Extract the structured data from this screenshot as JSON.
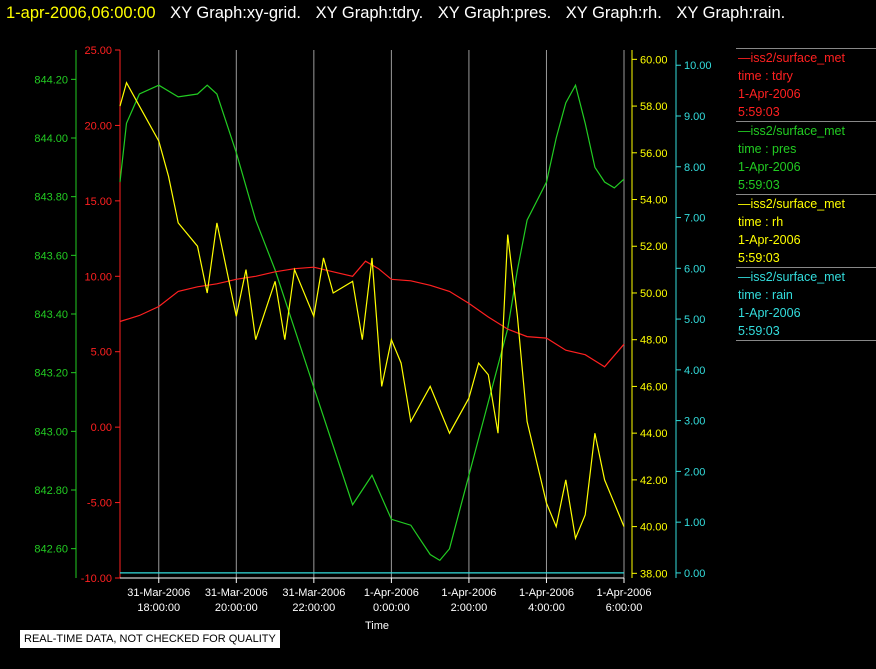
{
  "header": {
    "timestamp": "1-apr-2006,06:00:00",
    "graphs": [
      "XY Graph:xy-grid.",
      "XY Graph:tdry.",
      "XY Graph:pres.",
      "XY Graph:rh.",
      "XY Graph:rain."
    ]
  },
  "legend": [
    {
      "source": "—iss2/surface_met",
      "var": "time : tdry",
      "date": "1-Apr-2006",
      "time": "5:59:03",
      "color": "#ff2020"
    },
    {
      "source": "—iss2/surface_met",
      "var": "time : pres",
      "date": "1-Apr-2006",
      "time": "5:59:03",
      "color": "#22cc22"
    },
    {
      "source": "—iss2/surface_met",
      "var": "time : rh",
      "date": "1-Apr-2006",
      "time": "5:59:03",
      "color": "#ffff00"
    },
    {
      "source": "—iss2/surface_met",
      "var": "time : rain",
      "date": "1-Apr-2006",
      "time": "5:59:03",
      "color": "#33dddd"
    }
  ],
  "note": "REAL-TIME DATA, NOT CHECKED FOR QUALITY",
  "chart_data": {
    "type": "line",
    "xlabel": "Time",
    "x_range": [
      "2006-03-31 17:00",
      "2006-04-01 06:00"
    ],
    "x_ticks": [
      {
        "line1": "31-Mar-2006",
        "line2": "18:00:00",
        "t": "2006-03-31 18:00"
      },
      {
        "line1": "31-Mar-2006",
        "line2": "20:00:00",
        "t": "2006-03-31 20:00"
      },
      {
        "line1": "31-Mar-2006",
        "line2": "22:00:00",
        "t": "2006-03-31 22:00"
      },
      {
        "line1": "1-Apr-2006",
        "line2": "0:00:00",
        "t": "2006-04-01 00:00"
      },
      {
        "line1": "1-Apr-2006",
        "line2": "2:00:00",
        "t": "2006-04-01 02:00"
      },
      {
        "line1": "1-Apr-2006",
        "line2": "4:00:00",
        "t": "2006-04-01 04:00"
      },
      {
        "line1": "1-Apr-2006",
        "line2": "6:00:00",
        "t": "2006-04-01 06:00"
      }
    ],
    "grid": "vertical",
    "axes": {
      "pres": {
        "side": "left-outer",
        "color": "#22cc22",
        "range": [
          842.5,
          844.3
        ],
        "ticks": [
          "844.20",
          "844.00",
          "843.80",
          "843.60",
          "843.40",
          "843.20",
          "843.00",
          "842.80",
          "842.60"
        ]
      },
      "tdry": {
        "side": "left-inner",
        "color": "#ff2020",
        "range": [
          -10,
          25
        ],
        "ticks": [
          "25.00",
          "20.00",
          "15.00",
          "10.00",
          "5.00",
          "0.00",
          "-5.00",
          "-10.00"
        ]
      },
      "rh": {
        "side": "right-inner",
        "color": "#ffff00",
        "range": [
          37.8,
          60.4
        ],
        "ticks": [
          "60.00",
          "58.00",
          "56.00",
          "54.00",
          "52.00",
          "50.00",
          "48.00",
          "46.00",
          "44.00",
          "42.00",
          "40.00",
          "38.00"
        ]
      },
      "rain": {
        "side": "right-outer",
        "color": "#33dddd",
        "range": [
          -0.1,
          10.3
        ],
        "ticks": [
          "10.00",
          "9.00",
          "8.00",
          "7.00",
          "6.00",
          "5.00",
          "4.00",
          "3.00",
          "2.00",
          "1.00",
          "0.00"
        ]
      }
    },
    "series": [
      {
        "name": "pres",
        "axis": "pres",
        "color": "#22cc22",
        "x": [
          "2006-03-31 17:00",
          "2006-03-31 17:10",
          "2006-03-31 17:30",
          "2006-03-31 18:00",
          "2006-03-31 18:30",
          "2006-03-31 19:00",
          "2006-03-31 19:15",
          "2006-03-31 19:30",
          "2006-03-31 20:00",
          "2006-03-31 20:30",
          "2006-03-31 21:00",
          "2006-03-31 21:30",
          "2006-03-31 22:00",
          "2006-03-31 22:30",
          "2006-03-31 23:00",
          "2006-03-31 23:15",
          "2006-03-31 23:30",
          "2006-04-01 00:00",
          "2006-04-01 00:30",
          "2006-04-01 00:45",
          "2006-04-01 01:00",
          "2006-04-01 01:15",
          "2006-04-01 01:30",
          "2006-04-01 02:00",
          "2006-04-01 02:30",
          "2006-04-01 03:00",
          "2006-04-01 03:15",
          "2006-04-01 03:30",
          "2006-04-01 04:00",
          "2006-04-01 04:15",
          "2006-04-01 04:30",
          "2006-04-01 04:45",
          "2006-04-01 05:00",
          "2006-04-01 05:15",
          "2006-04-01 05:30",
          "2006-04-01 05:45",
          "2006-04-01 06:00"
        ],
        "y": [
          843.85,
          844.05,
          844.15,
          844.18,
          844.14,
          844.15,
          844.18,
          844.15,
          843.95,
          843.72,
          843.55,
          843.35,
          843.15,
          842.95,
          842.75,
          842.8,
          842.85,
          842.7,
          842.68,
          842.63,
          842.58,
          842.56,
          842.6,
          842.85,
          843.1,
          843.35,
          843.55,
          843.72,
          843.85,
          844.0,
          844.12,
          844.18,
          844.05,
          843.9,
          843.85,
          843.83,
          843.86
        ]
      },
      {
        "name": "tdry",
        "axis": "tdry",
        "color": "#ff2020",
        "x": [
          "2006-03-31 17:00",
          "2006-03-31 17:30",
          "2006-03-31 18:00",
          "2006-03-31 18:30",
          "2006-03-31 19:00",
          "2006-03-31 19:30",
          "2006-03-31 20:00",
          "2006-03-31 20:30",
          "2006-03-31 21:00",
          "2006-03-31 21:30",
          "2006-03-31 22:00",
          "2006-03-31 22:30",
          "2006-03-31 23:00",
          "2006-03-31 23:20",
          "2006-03-31 23:40",
          "2006-04-01 00:00",
          "2006-04-01 00:30",
          "2006-04-01 01:00",
          "2006-04-01 01:30",
          "2006-04-01 02:00",
          "2006-04-01 02:30",
          "2006-04-01 03:00",
          "2006-04-01 03:30",
          "2006-04-01 04:00",
          "2006-04-01 04:30",
          "2006-04-01 05:00",
          "2006-04-01 05:15",
          "2006-04-01 05:30",
          "2006-04-01 06:00"
        ],
        "y": [
          7.0,
          7.4,
          8.0,
          9.0,
          9.3,
          9.5,
          9.8,
          10.0,
          10.3,
          10.5,
          10.6,
          10.3,
          10.0,
          11.0,
          10.5,
          9.8,
          9.7,
          9.4,
          9.0,
          8.2,
          7.3,
          6.5,
          6.0,
          5.9,
          5.1,
          4.8,
          4.4,
          4.0,
          5.5
        ]
      },
      {
        "name": "rh",
        "axis": "rh",
        "color": "#ffff00",
        "x": [
          "2006-03-31 17:00",
          "2006-03-31 17:10",
          "2006-03-31 17:30",
          "2006-03-31 18:00",
          "2006-03-31 18:15",
          "2006-03-31 18:30",
          "2006-03-31 19:00",
          "2006-03-31 19:15",
          "2006-03-31 19:30",
          "2006-03-31 20:00",
          "2006-03-31 20:15",
          "2006-03-31 20:30",
          "2006-03-31 21:00",
          "2006-03-31 21:15",
          "2006-03-31 21:30",
          "2006-03-31 22:00",
          "2006-03-31 22:15",
          "2006-03-31 22:30",
          "2006-03-31 23:00",
          "2006-03-31 23:15",
          "2006-03-31 23:30",
          "2006-03-31 23:45",
          "2006-04-01 00:00",
          "2006-04-01 00:15",
          "2006-04-01 00:30",
          "2006-04-01 01:00",
          "2006-04-01 01:30",
          "2006-04-01 02:00",
          "2006-04-01 02:15",
          "2006-04-01 02:30",
          "2006-04-01 02:45",
          "2006-04-01 03:00",
          "2006-04-01 03:15",
          "2006-04-01 03:30",
          "2006-04-01 04:00",
          "2006-04-01 04:15",
          "2006-04-01 04:30",
          "2006-04-01 04:45",
          "2006-04-01 05:00",
          "2006-04-01 05:15",
          "2006-04-01 05:30",
          "2006-04-01 05:45",
          "2006-04-01 06:00"
        ],
        "y": [
          58.0,
          59.0,
          58.0,
          56.5,
          55.0,
          53.0,
          52.0,
          50.0,
          53.0,
          49.0,
          51.0,
          48.0,
          50.5,
          48.0,
          51.0,
          49.0,
          51.5,
          50.0,
          50.5,
          48.0,
          51.5,
          46.0,
          48.0,
          47.0,
          44.5,
          46.0,
          44.0,
          45.5,
          47.0,
          46.5,
          44.0,
          52.5,
          49.0,
          44.5,
          41.0,
          40.0,
          42.0,
          39.5,
          40.5,
          44.0,
          42.0,
          41.0,
          40.0
        ]
      },
      {
        "name": "rain",
        "axis": "rain",
        "color": "#33dddd",
        "x": [
          "2006-03-31 17:00",
          "2006-04-01 06:00"
        ],
        "y": [
          0.0,
          0.0
        ]
      }
    ]
  }
}
